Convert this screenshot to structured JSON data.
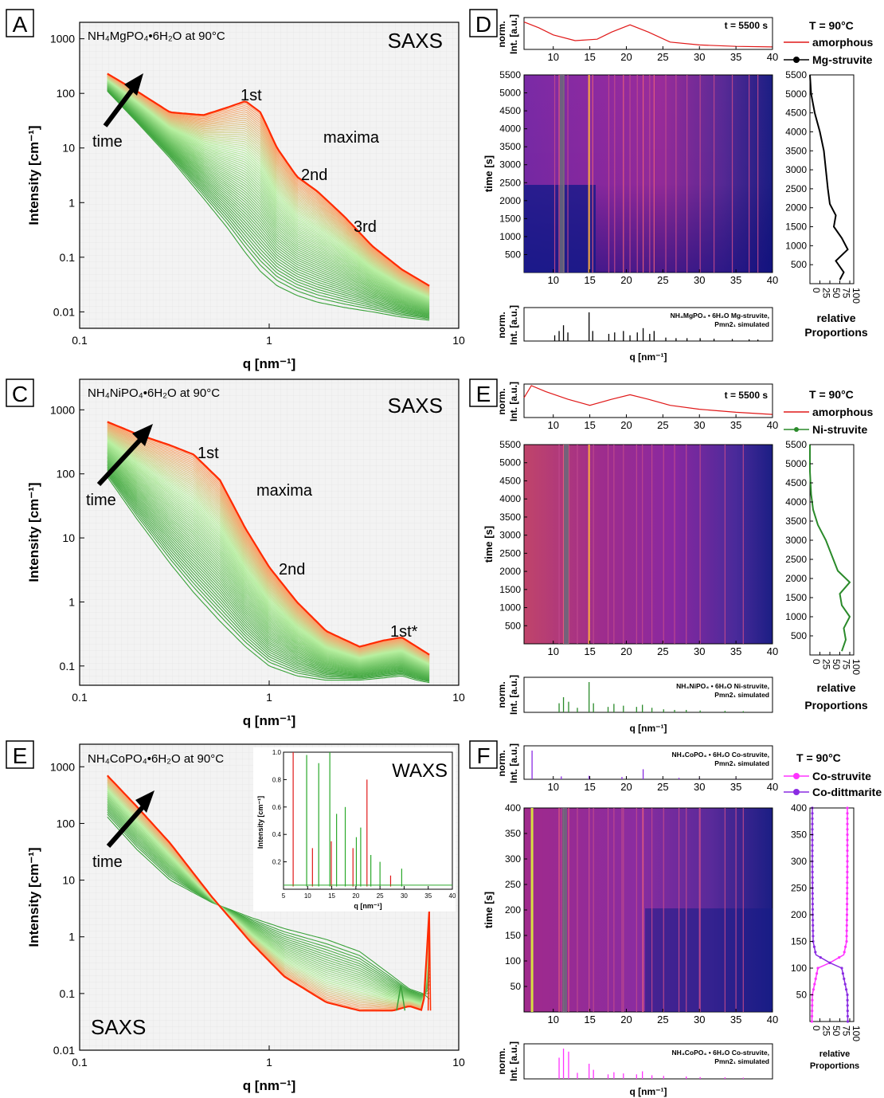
{
  "figure": {
    "panels": {
      "A": {
        "letter": "A",
        "sample": "NH₄MgPO₄•6H₂O at 90°C",
        "technique": "SAXS",
        "time_label": "time",
        "annotations": [
          "1st",
          "2nd",
          "3rd",
          "maxima"
        ],
        "ylabel": "Intensity [cm⁻¹]",
        "xlabel": "q [nm⁻¹]",
        "yticks": [
          "0.01",
          "0.1",
          "1",
          "10",
          "100",
          "1000"
        ],
        "xticks": [
          "0.1",
          "1",
          "10"
        ]
      },
      "C": {
        "letter": "C",
        "sample": "NH₄NiPO₄•6H₂O at 90°C",
        "technique": "SAXS",
        "time_label": "time",
        "annotations": [
          "1st",
          "maxima",
          "2nd",
          "1st*"
        ],
        "ylabel": "Intensity [cm⁻¹]",
        "xlabel": "q [nm⁻¹]",
        "yticks": [
          "0.1",
          "1",
          "10",
          "100",
          "1000"
        ],
        "xticks": [
          "0.1",
          "1",
          "10"
        ]
      },
      "E_left": {
        "letter": "E",
        "sample": "NH₄CoPO₄•6H₂O at 90°C",
        "technique": "SAXS",
        "inset_technique": "WAXS",
        "inset_ylabel": "Intensity [cm⁻¹]",
        "inset_xlabel": "q [nm⁻¹]",
        "inset_yticks": [
          "0.2",
          "0.4",
          "0.6",
          "0.8",
          "1.0"
        ],
        "inset_xticks": [
          "5",
          "10",
          "15",
          "20",
          "25",
          "30",
          "35",
          "40"
        ],
        "time_label": "time",
        "ylabel": "Intensity [cm⁻¹]",
        "xlabel": "q [nm⁻¹]",
        "yticks": [
          "0.01",
          "0.1",
          "1",
          "10",
          "100",
          "1000"
        ],
        "xticks": [
          "0.1",
          "1",
          "10"
        ]
      },
      "D": {
        "letter": "D",
        "top_label": "t = 5500 s",
        "top_ylabel_1": "norm.",
        "top_ylabel_2": "Int. [a.u.]",
        "temp": "T = 90°C",
        "legend": [
          "amorphous",
          "Mg-struvite"
        ],
        "ylabel": "time [s]",
        "yticks": [
          "500",
          "1000",
          "1500",
          "2000",
          "2500",
          "3000",
          "3500",
          "4000",
          "4500",
          "5000",
          "5500"
        ],
        "xticks": [
          "10",
          "15",
          "20",
          "25",
          "30",
          "35",
          "40"
        ],
        "bottom_label_1": "NH₄MgPO₄ • 6H₂O Mg-struvite,",
        "bottom_label_2": "Pmn2₁ simulated",
        "xlabel": "q [nm⁻¹]",
        "side_xticks": [
          "0",
          "25",
          "50",
          "75",
          "100"
        ],
        "side_label_1": "relative",
        "side_label_2": "Proportions"
      },
      "E_right": {
        "letter": "E",
        "top_label": "t = 5500 s",
        "top_ylabel_1": "norm.",
        "top_ylabel_2": "Int. [a.u.]",
        "temp": "T = 90°C",
        "legend": [
          "amorphous",
          "Ni-struvite"
        ],
        "ylabel": "time [s]",
        "yticks": [
          "500",
          "1000",
          "1500",
          "2000",
          "2500",
          "3000",
          "3500",
          "4000",
          "4500",
          "5000",
          "5500"
        ],
        "xticks": [
          "10",
          "15",
          "20",
          "25",
          "30",
          "35",
          "40"
        ],
        "bottom_label_1": "NH₄NiPO₄ • 6H₂O Ni-struvite,",
        "bottom_label_2": "Pmn2₁ simulated",
        "xlabel": "q [nm⁻¹]",
        "side_xticks": [
          "0",
          "25",
          "50",
          "75",
          "100"
        ],
        "side_label_1": "relative",
        "side_label_2": "Proportions"
      },
      "F": {
        "letter": "F",
        "top_label_1": "NH₄CoPO₄ • 6H₂O Co-struvite,",
        "top_label_2": "Pmn2₁ simulated",
        "top_ylabel_1": "norm.",
        "top_ylabel_2": "Int. [a.u.]",
        "temp": "T = 90°C",
        "legend": [
          "Co-struvite",
          "Co-dittmarite"
        ],
        "ylabel": "time [s]",
        "yticks": [
          "50",
          "100",
          "150",
          "200",
          "250",
          "300",
          "350",
          "400"
        ],
        "xticks": [
          "10",
          "15",
          "20",
          "25",
          "30",
          "35",
          "40"
        ],
        "bottom_label_1": "NH₄CoPO₄ • 6H₂O Co-struvite,",
        "bottom_label_2": "Pmn2₁ simulated",
        "xlabel": "q [nm⁻¹]",
        "side_xticks": [
          "0",
          "25",
          "50",
          "75",
          "100"
        ],
        "side_label_1": "relative",
        "side_label_2": "Proportions"
      }
    },
    "colors": {
      "early_green": "#3aa23a",
      "late_red": "#ff2a00",
      "heat_dark": "#1a1a7a",
      "heat_mid": "#8a1fa8",
      "heat_bright": "#ff8a3c",
      "mg_line": "#000000",
      "ni_line": "#2a8a2a",
      "co_struvite": "#ff33ff",
      "co_dittmarite": "#8a2be2",
      "sim_mg": "#000000",
      "sim_ni": "#2a8a2a",
      "sim_co": "#ff33ff"
    }
  },
  "chart_data": [
    {
      "panel": "A",
      "type": "line",
      "title": "NH₄MgPO₄•6H₂O at 90°C",
      "xlabel": "q [nm⁻¹]",
      "ylabel": "Intensity [cm⁻¹]",
      "xscale": "log",
      "yscale": "log",
      "xlim": [
        0.1,
        10
      ],
      "ylim": [
        0.005,
        2000
      ],
      "series": [
        {
          "q": [
            0.14,
            0.2,
            0.3,
            0.45,
            0.6,
            0.75,
            0.9,
            1.1,
            1.4,
            1.8,
            2.5,
            3.5,
            5.0,
            7.0
          ],
          "I": [
            230,
            110,
            45,
            40,
            55,
            72,
            45,
            10,
            3.0,
            1.6,
            0.55,
            0.16,
            0.06,
            0.03
          ]
        },
        {
          "q": [
            0.14,
            0.2,
            0.3,
            0.45,
            0.6,
            0.75,
            0.9,
            1.1,
            1.4,
            1.8,
            2.5,
            3.5,
            5.0,
            7.0
          ],
          "I": [
            110,
            30,
            6.5,
            1.2,
            0.35,
            0.12,
            0.055,
            0.03,
            0.02,
            0.015,
            0.012,
            0.01,
            0.008,
            0.007
          ]
        }
      ],
      "annotations": [
        "1st",
        "2nd",
        "3rd",
        "maxima"
      ]
    },
    {
      "panel": "C",
      "type": "line",
      "title": "NH₄NiPO₄•6H₂O at 90°C",
      "xlabel": "q [nm⁻¹]",
      "ylabel": "Intensity [cm⁻¹]",
      "xscale": "log",
      "yscale": "log",
      "xlim": [
        0.1,
        10
      ],
      "ylim": [
        0.05,
        3000
      ],
      "series": [
        {
          "q": [
            0.14,
            0.2,
            0.3,
            0.4,
            0.55,
            0.75,
            1.0,
            1.4,
            2.0,
            3.0,
            4.0,
            5.0,
            6.0,
            7.0
          ],
          "I": [
            650,
            420,
            280,
            200,
            80,
            14,
            3.5,
            1.0,
            0.35,
            0.2,
            0.25,
            0.28,
            0.2,
            0.15
          ]
        },
        {
          "q": [
            0.14,
            0.2,
            0.3,
            0.4,
            0.55,
            0.75,
            1.0,
            1.4,
            2.0,
            3.0,
            4.0,
            5.0,
            6.0,
            7.0
          ],
          "I": [
            90,
            20,
            4.0,
            1.4,
            0.5,
            0.2,
            0.1,
            0.07,
            0.06,
            0.06,
            0.065,
            0.07,
            0.06,
            0.055
          ]
        }
      ],
      "annotations": [
        "1st",
        "2nd",
        "1st*",
        "maxima"
      ]
    },
    {
      "panel": "E_left",
      "type": "line",
      "title": "NH₄CoPO₄•6H₂O at 90°C",
      "xlabel": "q [nm⁻¹]",
      "ylabel": "Intensity [cm⁻¹]",
      "xscale": "log",
      "yscale": "log",
      "xlim": [
        0.1,
        10
      ],
      "ylim": [
        0.01,
        2500
      ],
      "series": [
        {
          "q": [
            0.14,
            0.2,
            0.3,
            0.5,
            0.8,
            1.2,
            2.0,
            3.0,
            4.5,
            5.5,
            6.5,
            7.0
          ],
          "I": [
            700,
            200,
            45,
            5,
            0.8,
            0.2,
            0.07,
            0.05,
            0.05,
            0.06,
            0.05,
            3.0
          ]
        },
        {
          "q": [
            0.14,
            0.2,
            0.3,
            0.5,
            0.8,
            1.2,
            2.0,
            3.0,
            4.5,
            5.5,
            6.5,
            7.0
          ],
          "I": [
            130,
            35,
            10,
            4,
            2.2,
            1.4,
            0.9,
            0.55,
            0.2,
            0.12,
            0.1,
            0.08
          ]
        }
      ],
      "inset": {
        "type": "line",
        "xlabel": "q [nm⁻¹]",
        "ylabel": "Intensity [cm⁻¹]",
        "xlim": [
          5,
          40
        ],
        "ylim": [
          0,
          1.0
        ],
        "peaks_red_q": [
          7.0,
          11.0,
          14.9,
          19.4,
          22.3,
          27.2
        ],
        "peaks_red_I": [
          1.0,
          0.3,
          0.35,
          0.3,
          0.8,
          0.1
        ],
        "peaks_green_q": [
          9.8,
          12.3,
          14.6,
          16.0,
          17.8,
          20.1,
          21.0,
          23.1,
          25.0,
          29.5
        ],
        "peaks_green_I": [
          0.98,
          0.92,
          1.0,
          0.55,
          0.6,
          0.38,
          0.45,
          0.25,
          0.2,
          0.15
        ]
      }
    },
    {
      "panel": "D",
      "type": "heatmap",
      "xlim": [
        6,
        40
      ],
      "ylim": [
        0,
        5500
      ],
      "top_series": {
        "q": [
          6,
          8,
          10,
          13,
          16,
          18,
          20.5,
          23,
          26,
          30,
          35,
          40
        ],
        "I": [
          0.9,
          0.7,
          0.45,
          0.25,
          0.3,
          0.55,
          0.8,
          0.55,
          0.2,
          0.1,
          0.05,
          0.03
        ]
      },
      "struvite_proportion": {
        "time": [
          100,
          300,
          600,
          900,
          1200,
          1500,
          1800,
          2100,
          2500,
          3000,
          3500,
          4000,
          4500,
          5000,
          5500
        ],
        "value": [
          75,
          85,
          65,
          95,
          80,
          60,
          65,
          50,
          45,
          40,
          35,
          25,
          12,
          3,
          0
        ]
      },
      "simulated_peaks_q": [
        10.2,
        10.8,
        11.4,
        12.0,
        14.9,
        15.4,
        17.6,
        18.4,
        19.6,
        20.5,
        21.5,
        22.3,
        23.2,
        23.8,
        25.4,
        26.8,
        28.3,
        30.1,
        32.0,
        34.5,
        36.8,
        38.0
      ],
      "simulated_peaks_I": [
        0.2,
        0.35,
        0.55,
        0.3,
        1.0,
        0.35,
        0.25,
        0.3,
        0.35,
        0.2,
        0.3,
        0.45,
        0.25,
        0.35,
        0.12,
        0.1,
        0.1,
        0.1,
        0.08,
        0.07,
        0.06,
        0.05
      ]
    },
    {
      "panel": "E_right",
      "type": "heatmap",
      "xlim": [
        6,
        40
      ],
      "ylim": [
        0,
        5500
      ],
      "top_series": {
        "q": [
          6,
          7,
          9,
          12,
          15,
          18,
          20.5,
          23,
          26,
          30,
          35,
          40
        ],
        "I": [
          0.6,
          1.0,
          0.8,
          0.55,
          0.35,
          0.55,
          0.7,
          0.55,
          0.35,
          0.22,
          0.12,
          0.05
        ]
      },
      "struvite_proportion": {
        "time": [
          100,
          400,
          700,
          1000,
          1300,
          1600,
          1900,
          2200,
          2600,
          3000,
          3400,
          3800,
          4200,
          4800,
          5500
        ],
        "value": [
          80,
          90,
          85,
          100,
          80,
          75,
          100,
          70,
          55,
          40,
          20,
          8,
          3,
          0,
          0
        ]
      },
      "simulated_peaks_q": [
        10.8,
        11.4,
        12.1,
        13.3,
        14.9,
        15.5,
        17.5,
        18.3,
        19.6,
        21.4,
        22.2,
        23.5,
        25.1,
        26.6,
        28.2,
        30.1,
        33.5,
        36.0
      ],
      "simulated_peaks_I": [
        0.3,
        0.5,
        0.35,
        0.15,
        1.0,
        0.3,
        0.18,
        0.28,
        0.22,
        0.18,
        0.25,
        0.15,
        0.1,
        0.08,
        0.08,
        0.06,
        0.05,
        0.04
      ]
    },
    {
      "panel": "F",
      "type": "heatmap",
      "xlim": [
        6,
        40
      ],
      "ylim": [
        0,
        400
      ],
      "top_simulated_peaks_q": [
        7.1,
        11.1,
        14.9,
        19.4,
        22.3,
        27.2,
        30.0,
        35.0
      ],
      "top_simulated_peaks_I": [
        1.0,
        0.1,
        0.12,
        0.08,
        0.35,
        0.05,
        0.04,
        0.03
      ],
      "co_struvite": {
        "time": [
          0,
          50,
          100,
          110,
          125,
          150,
          200,
          300,
          400
        ],
        "value": [
          5,
          6,
          20,
          50,
          85,
          92,
          93,
          94,
          94
        ]
      },
      "co_dittmarite": {
        "time": [
          0,
          50,
          100,
          110,
          125,
          150,
          200,
          300,
          400
        ],
        "value": [
          95,
          94,
          80,
          50,
          15,
          8,
          7,
          6,
          6
        ]
      },
      "simulated_peaks_q": [
        10.8,
        11.4,
        12.1,
        13.3,
        14.9,
        15.5,
        17.5,
        18.3,
        19.6,
        21.4,
        22.2,
        23.5,
        25.1,
        28.2,
        30.1,
        33.5,
        36.0
      ],
      "simulated_peaks_I": [
        0.7,
        1.0,
        0.9,
        0.2,
        0.5,
        0.3,
        0.15,
        0.22,
        0.18,
        0.15,
        0.25,
        0.12,
        0.1,
        0.08,
        0.06,
        0.05,
        0.04
      ]
    }
  ]
}
